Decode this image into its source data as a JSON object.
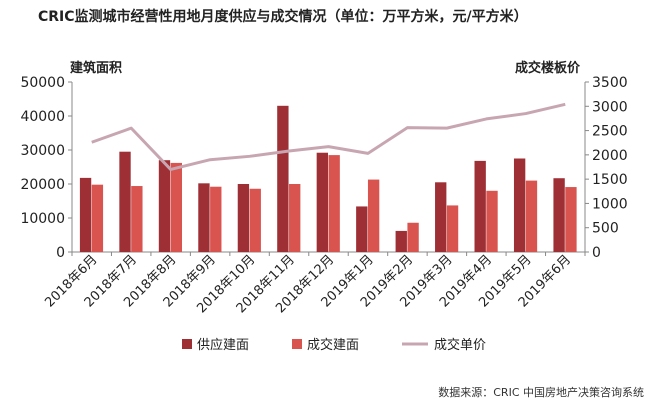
{
  "chart_data": {
    "type": "bar",
    "title": "CRIC监测城市经营性用地月度供应与成交情况（单位：万平方米，元/平方米）",
    "source": "数据来源：CRIC 中国房地产决策咨询系统",
    "ylabel_left": "建筑面积",
    "ylabel_right": "成交楼板价",
    "categories": [
      "2018年6月",
      "2018年7月",
      "2018年8月",
      "2018年9月",
      "2018年10月",
      "2018年11月",
      "2018年12月",
      "2019年1月",
      "2019年2月",
      "2019年3月",
      "2019年4月",
      "2019年5月",
      "2019年6月"
    ],
    "ylim_left": [
      0,
      50000
    ],
    "yticks_left": [
      0,
      10000,
      20000,
      30000,
      40000,
      50000
    ],
    "ylim_right": [
      0,
      3500
    ],
    "yticks_right": [
      0,
      500,
      1000,
      1500,
      2000,
      2500,
      3000,
      3500
    ],
    "series": [
      {
        "name": "供应建面",
        "type": "bar",
        "axis": "left",
        "color": "#9e2f35",
        "values": [
          21800,
          29500,
          27000,
          20200,
          20000,
          43000,
          29200,
          13400,
          6200,
          20500,
          26800,
          27500,
          21700
        ]
      },
      {
        "name": "成交建面",
        "type": "bar",
        "axis": "left",
        "color": "#d9534f",
        "values": [
          19800,
          19400,
          26200,
          19200,
          18600,
          20000,
          28500,
          21300,
          8600,
          13700,
          18000,
          21000,
          19100
        ]
      },
      {
        "name": "成交单价",
        "type": "line",
        "axis": "right",
        "color": "#c7a6b2",
        "values": [
          2260,
          2550,
          1700,
          1900,
          1970,
          2080,
          2170,
          2030,
          2560,
          2550,
          2740,
          2850,
          3040
        ]
      }
    ],
    "grid": false,
    "legend": "bottom"
  }
}
